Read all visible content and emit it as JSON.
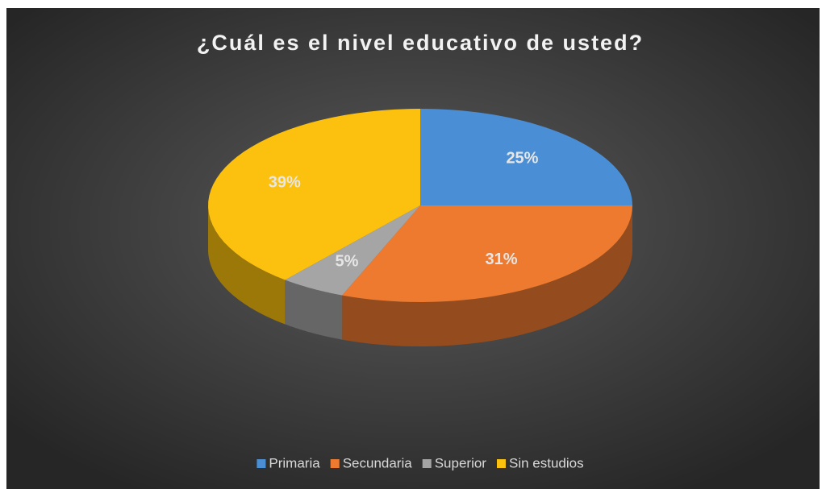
{
  "chart_data": {
    "type": "pie",
    "title": "¿Cuál es el nivel educativo de usted?",
    "categories": [
      "Primaria",
      "Secundaria",
      "Superior",
      "Sin estudios"
    ],
    "values": [
      25,
      31,
      5,
      39
    ],
    "value_labels": [
      "25%",
      "31%",
      "5%",
      "39%"
    ],
    "colors": [
      "#4a8fd6",
      "#ee7a30",
      "#a5a5a5",
      "#fcc10e"
    ],
    "legend": "bottom"
  }
}
